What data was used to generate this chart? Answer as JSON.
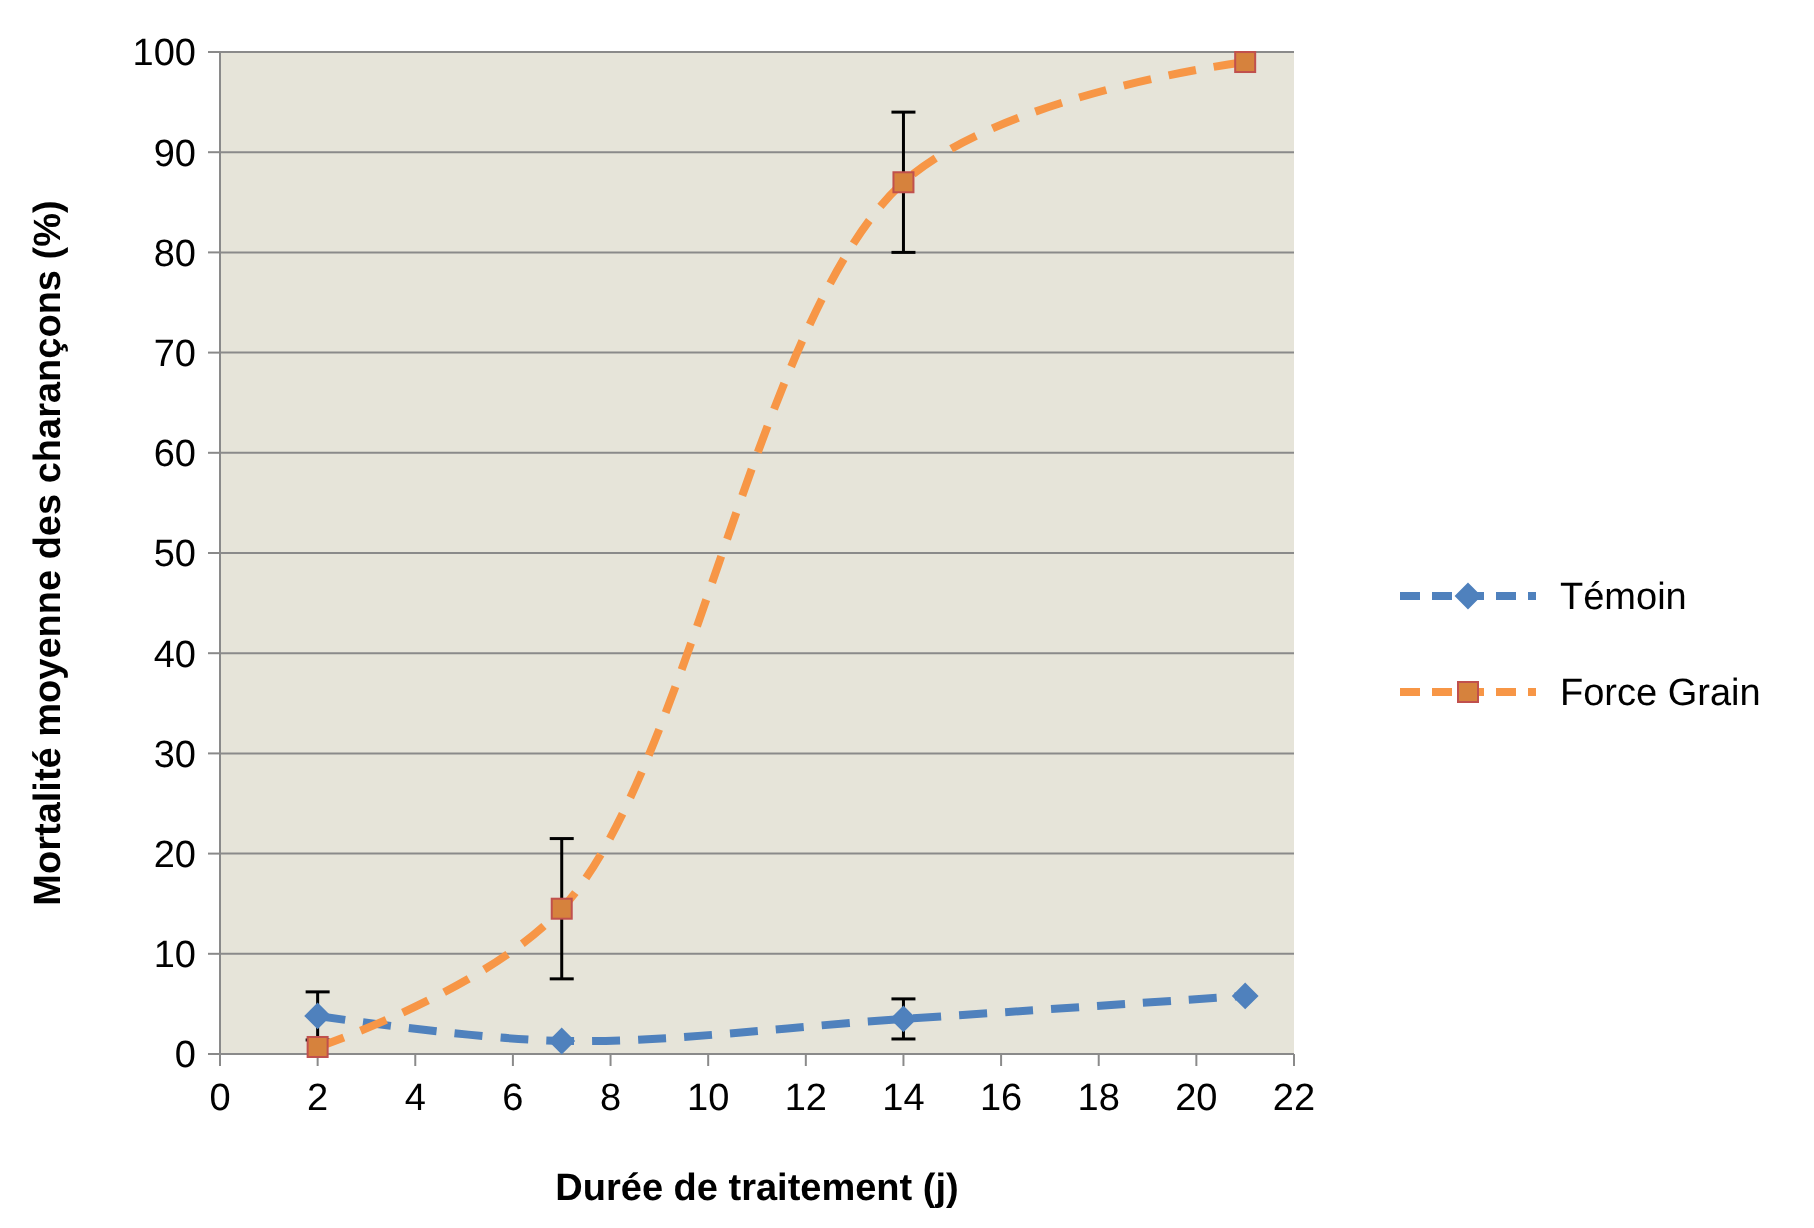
{
  "chart_data": {
    "type": "line",
    "xlabel": "Durée de traitement (j)",
    "ylabel": "Mortalité moyenne des charançons (%)",
    "xlim": [
      0,
      22
    ],
    "xticks": [
      0,
      2,
      4,
      6,
      8,
      10,
      12,
      14,
      16,
      18,
      20,
      22
    ],
    "ylim": [
      0,
      100
    ],
    "yticks": [
      0,
      10,
      20,
      30,
      40,
      50,
      60,
      70,
      80,
      90,
      100
    ],
    "x": [
      2,
      7,
      14,
      21
    ],
    "grid": "y",
    "legend": "right",
    "line_style": "dashed",
    "series": [
      {
        "name": "Témoin",
        "color": "#4f81bd",
        "marker": "diamond",
        "values": [
          3.8,
          1.3,
          3.5,
          5.8
        ],
        "errors": [
          2.4,
          null,
          2,
          null
        ]
      },
      {
        "name": "Force Grain",
        "color": "#f79646",
        "marker": "square",
        "values": [
          0.7,
          14.5,
          87,
          99
        ],
        "errors": [
          null,
          7,
          7,
          null
        ]
      }
    ]
  }
}
